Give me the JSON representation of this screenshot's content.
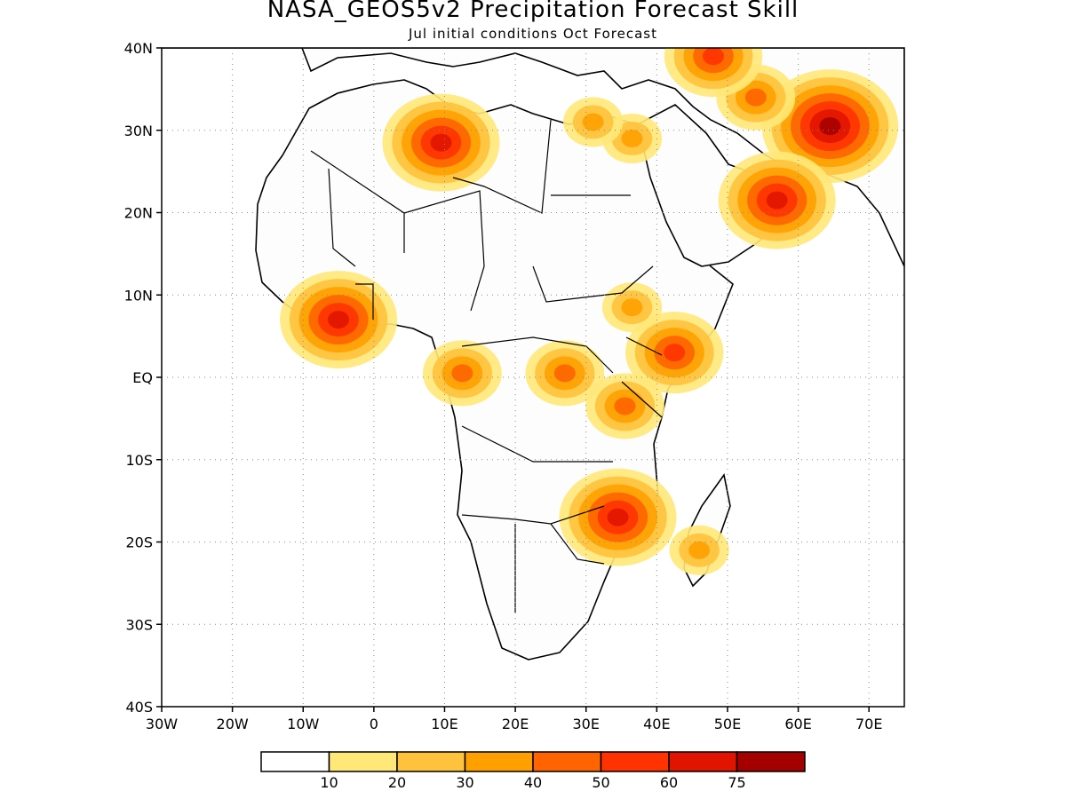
{
  "title": "NASA_GEOS5v2 Precipitation Forecast Skill",
  "subtitle": "Jul initial conditions  Oct Forecast",
  "map": {
    "lon_range": [
      -30,
      75
    ],
    "lat_range": [
      -40,
      40
    ],
    "lat_labels": [
      "40N",
      "30N",
      "20N",
      "10N",
      "EQ",
      "10S",
      "20S",
      "30S",
      "40S"
    ],
    "lon_labels": [
      "30W",
      "20W",
      "10W",
      "0",
      "10E",
      "20E",
      "30E",
      "40E",
      "50E",
      "60E",
      "70E"
    ],
    "grid": "dotted"
  },
  "colorbar": {
    "labels": [
      "10",
      "20",
      "30",
      "40",
      "50",
      "60",
      "75"
    ],
    "colors": [
      "#ffffff",
      "#ffe878",
      "#ffc23c",
      "#ffa000",
      "#ff6400",
      "#ff3200",
      "#e11400",
      "#a50000"
    ]
  },
  "hotspots": [
    {
      "lon": 64.5,
      "lat": 30.5,
      "level": 7
    },
    {
      "lon": 54,
      "lat": 34,
      "level": 4
    },
    {
      "lon": 48,
      "lat": 39,
      "level": 5
    },
    {
      "lon": 57,
      "lat": 21.5,
      "level": 6
    },
    {
      "lon": 9.5,
      "lat": 28.5,
      "level": 6
    },
    {
      "lon": 27,
      "lat": 0.5,
      "level": 4
    },
    {
      "lon": 35.5,
      "lat": -3.5,
      "level": 4
    },
    {
      "lon": 34.5,
      "lat": -17,
      "level": 6
    },
    {
      "lon": 12.5,
      "lat": 0.5,
      "level": 4
    },
    {
      "lon": 42.5,
      "lat": 3,
      "level": 5
    },
    {
      "lon": -5,
      "lat": 7,
      "level": 6
    },
    {
      "lon": 36.5,
      "lat": 8.5,
      "level": 3
    },
    {
      "lon": 46,
      "lat": -21,
      "level": 3
    },
    {
      "lon": 36.5,
      "lat": 29,
      "level": 3
    },
    {
      "lon": 31,
      "lat": 31,
      "level": 3
    }
  ]
}
